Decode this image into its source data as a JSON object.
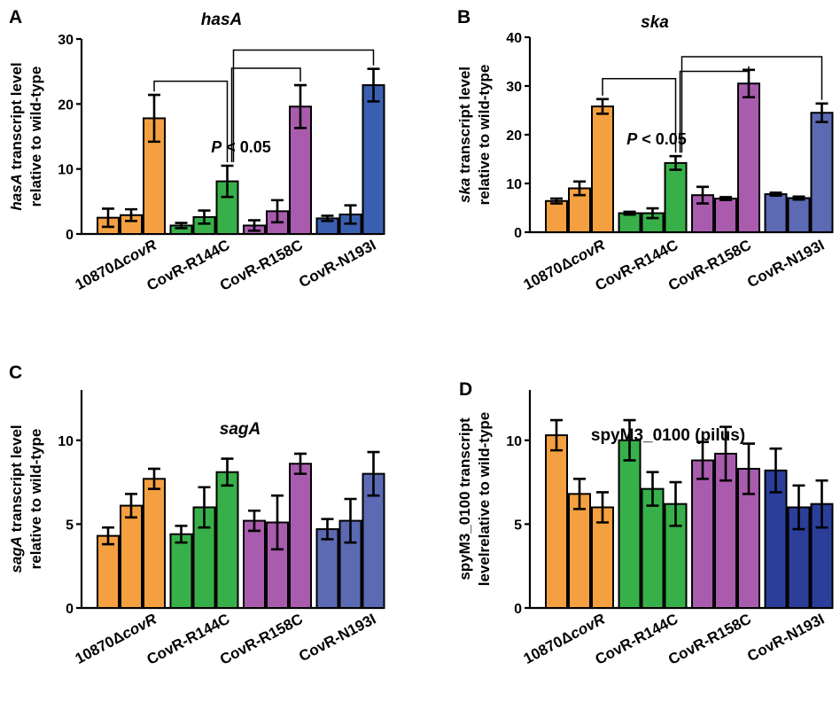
{
  "colors": {
    "orange": "#F5A040",
    "green": "#37B04A",
    "purple": "#A95CAE",
    "blue": "#3B5FB0",
    "blue_slate": "#5B6AB3",
    "blue_navy": "#2A3E9A"
  },
  "chart_data": [
    {
      "type": "bar",
      "panel_label": "A",
      "title": "hasA",
      "title_italic": true,
      "ylabel_italic_part": "hasA",
      "ylabel_line1_rest": " transcript level",
      "ylabel_line2": "relative to wild-type",
      "ylim": [
        0,
        30
      ],
      "yticks": [
        "0",
        "10",
        "20",
        "30"
      ],
      "ytick_values": [
        0,
        10,
        20,
        30
      ],
      "group_labels": [
        {
          "main": "10870Δ",
          "italic": "covR"
        },
        {
          "main": "CovR-R144C",
          "italic": ""
        },
        {
          "main": "CovR-R158C",
          "italic": ""
        },
        {
          "main": "CovR-N193I",
          "italic": ""
        }
      ],
      "group_color_keys": [
        "orange",
        "green",
        "purple",
        "blue"
      ],
      "groups": [
        {
          "values": [
            2.5,
            2.9,
            17.8
          ],
          "errors": [
            1.4,
            0.9,
            3.6
          ]
        },
        {
          "values": [
            1.3,
            2.6,
            8.1
          ],
          "errors": [
            0.4,
            1.0,
            2.4
          ]
        },
        {
          "values": [
            1.3,
            3.5,
            19.6
          ],
          "errors": [
            0.8,
            1.7,
            3.3
          ]
        },
        {
          "values": [
            2.4,
            3.0,
            22.9
          ],
          "errors": [
            0.4,
            1.4,
            2.5
          ]
        }
      ],
      "significance": {
        "italic": "P",
        "rest": " < 0.05"
      },
      "brackets": [
        {
          "from": [
            0,
            2
          ],
          "to": [
            1,
            2
          ],
          "level": 23.5
        },
        {
          "from": [
            1,
            2
          ],
          "to": [
            2,
            2
          ],
          "level": 25.5
        },
        {
          "from": [
            1,
            2
          ],
          "to": [
            3,
            2
          ],
          "level": 28.3
        }
      ]
    },
    {
      "type": "bar",
      "panel_label": "B",
      "title": "ska",
      "title_italic": true,
      "ylabel_italic_part": "ska",
      "ylabel_line1_rest": " transcript level",
      "ylabel_line2": "relative to wild-type",
      "ylim": [
        0,
        40
      ],
      "yticks": [
        "0",
        "10",
        "20",
        "30",
        "40"
      ],
      "ytick_values": [
        0,
        10,
        20,
        30,
        40
      ],
      "group_labels": [
        {
          "main": "10870Δ",
          "italic": "covR"
        },
        {
          "main": "CovR-R144C",
          "italic": ""
        },
        {
          "main": "CovR-R158C",
          "italic": ""
        },
        {
          "main": "CovR-N193I",
          "italic": ""
        }
      ],
      "group_color_keys": [
        "orange",
        "green",
        "purple",
        "blue_slate"
      ],
      "groups": [
        {
          "values": [
            6.4,
            9.0,
            25.8
          ],
          "errors": [
            0.5,
            1.4,
            1.5
          ]
        },
        {
          "values": [
            3.9,
            3.9,
            14.2
          ],
          "errors": [
            0.3,
            1.0,
            1.4
          ]
        },
        {
          "values": [
            7.6,
            6.9,
            30.5
          ],
          "errors": [
            1.7,
            0.3,
            2.8
          ]
        },
        {
          "values": [
            7.8,
            7.0,
            24.5
          ],
          "errors": [
            0.3,
            0.3,
            1.9
          ]
        }
      ],
      "significance": {
        "italic": "P",
        "rest": " < 0.05"
      },
      "brackets": [
        {
          "from": [
            0,
            2
          ],
          "to": [
            1,
            2
          ],
          "level": 31.5
        },
        {
          "from": [
            1,
            2
          ],
          "to": [
            2,
            2
          ],
          "level": 33.0
        },
        {
          "from": [
            1,
            2
          ],
          "to": [
            3,
            2
          ],
          "level": 36.0
        }
      ]
    },
    {
      "type": "bar",
      "panel_label": "C",
      "title": "sagA",
      "title_italic": true,
      "ylabel_italic_part": "sagA",
      "ylabel_line1_rest": " transcript level",
      "ylabel_line2": "relative to wild-type",
      "ylim": [
        0,
        13
      ],
      "yticks": [
        "0",
        "5",
        "10"
      ],
      "ytick_values": [
        0,
        5,
        10
      ],
      "group_labels": [
        {
          "main": "10870Δ",
          "italic": "covR"
        },
        {
          "main": "CovR-R144C",
          "italic": ""
        },
        {
          "main": "CovR-R158C",
          "italic": ""
        },
        {
          "main": "CovR-N193I",
          "italic": ""
        }
      ],
      "group_color_keys": [
        "orange",
        "green",
        "purple",
        "blue_slate"
      ],
      "groups": [
        {
          "values": [
            4.3,
            6.1,
            7.7
          ],
          "errors": [
            0.5,
            0.7,
            0.6
          ]
        },
        {
          "values": [
            4.4,
            6.0,
            8.1
          ],
          "errors": [
            0.5,
            1.2,
            0.8
          ]
        },
        {
          "values": [
            5.2,
            5.1,
            8.6
          ],
          "errors": [
            0.6,
            1.6,
            0.6
          ]
        },
        {
          "values": [
            4.7,
            5.2,
            8.0
          ],
          "errors": [
            0.6,
            1.3,
            1.3
          ]
        }
      ],
      "significance": null,
      "brackets": []
    },
    {
      "type": "bar",
      "panel_label": "D",
      "title": "spyM3_0100 (pilus)",
      "title_italic": false,
      "ylabel_italic_part": "",
      "ylabel_line1_rest": "spyM3_0100 transcript",
      "ylabel_line2": "levelrelative to wild-type",
      "ylim": [
        0,
        13
      ],
      "yticks": [
        "0",
        "5",
        "10"
      ],
      "ytick_values": [
        0,
        5,
        10
      ],
      "group_labels": [
        {
          "main": "10870Δ",
          "italic": "covR"
        },
        {
          "main": "CovR-R144C",
          "italic": ""
        },
        {
          "main": "CovR-R158C",
          "italic": ""
        },
        {
          "main": "CovR-N193I",
          "italic": ""
        }
      ],
      "group_color_keys": [
        "orange",
        "green",
        "purple",
        "blue_navy"
      ],
      "groups": [
        {
          "values": [
            10.3,
            6.8,
            6.0
          ],
          "errors": [
            0.9,
            0.9,
            0.9
          ]
        },
        {
          "values": [
            10.0,
            7.1,
            6.2
          ],
          "errors": [
            1.2,
            1.0,
            1.3
          ]
        },
        {
          "values": [
            8.8,
            9.2,
            8.3
          ],
          "errors": [
            1.1,
            1.6,
            1.5
          ]
        },
        {
          "values": [
            8.2,
            6.0,
            6.2
          ],
          "errors": [
            1.3,
            1.3,
            1.4
          ]
        }
      ],
      "significance": null,
      "brackets": []
    }
  ]
}
